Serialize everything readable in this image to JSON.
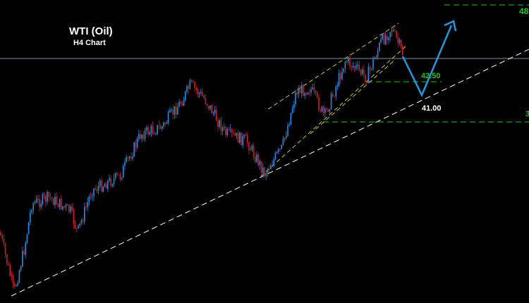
{
  "chart_data": {
    "type": "candlestick",
    "title": "WTI (Oil)",
    "subtitle": "H4 Chart",
    "annotations": [
      {
        "label": "48",
        "color": "#22c322"
      },
      {
        "label": "42.50",
        "color": "#22c322"
      },
      {
        "label": "41.00",
        "color": "#ffffff"
      },
      {
        "label": "3",
        "color": "#22c322"
      }
    ],
    "colors": {
      "up": "#1f8fe8",
      "down": "#d21f1f",
      "channel": "#c8c81e",
      "trend": "#ffffff",
      "levels": "#22c322",
      "forecast": "#1e9be0",
      "price_line": "#6c7280"
    }
  }
}
